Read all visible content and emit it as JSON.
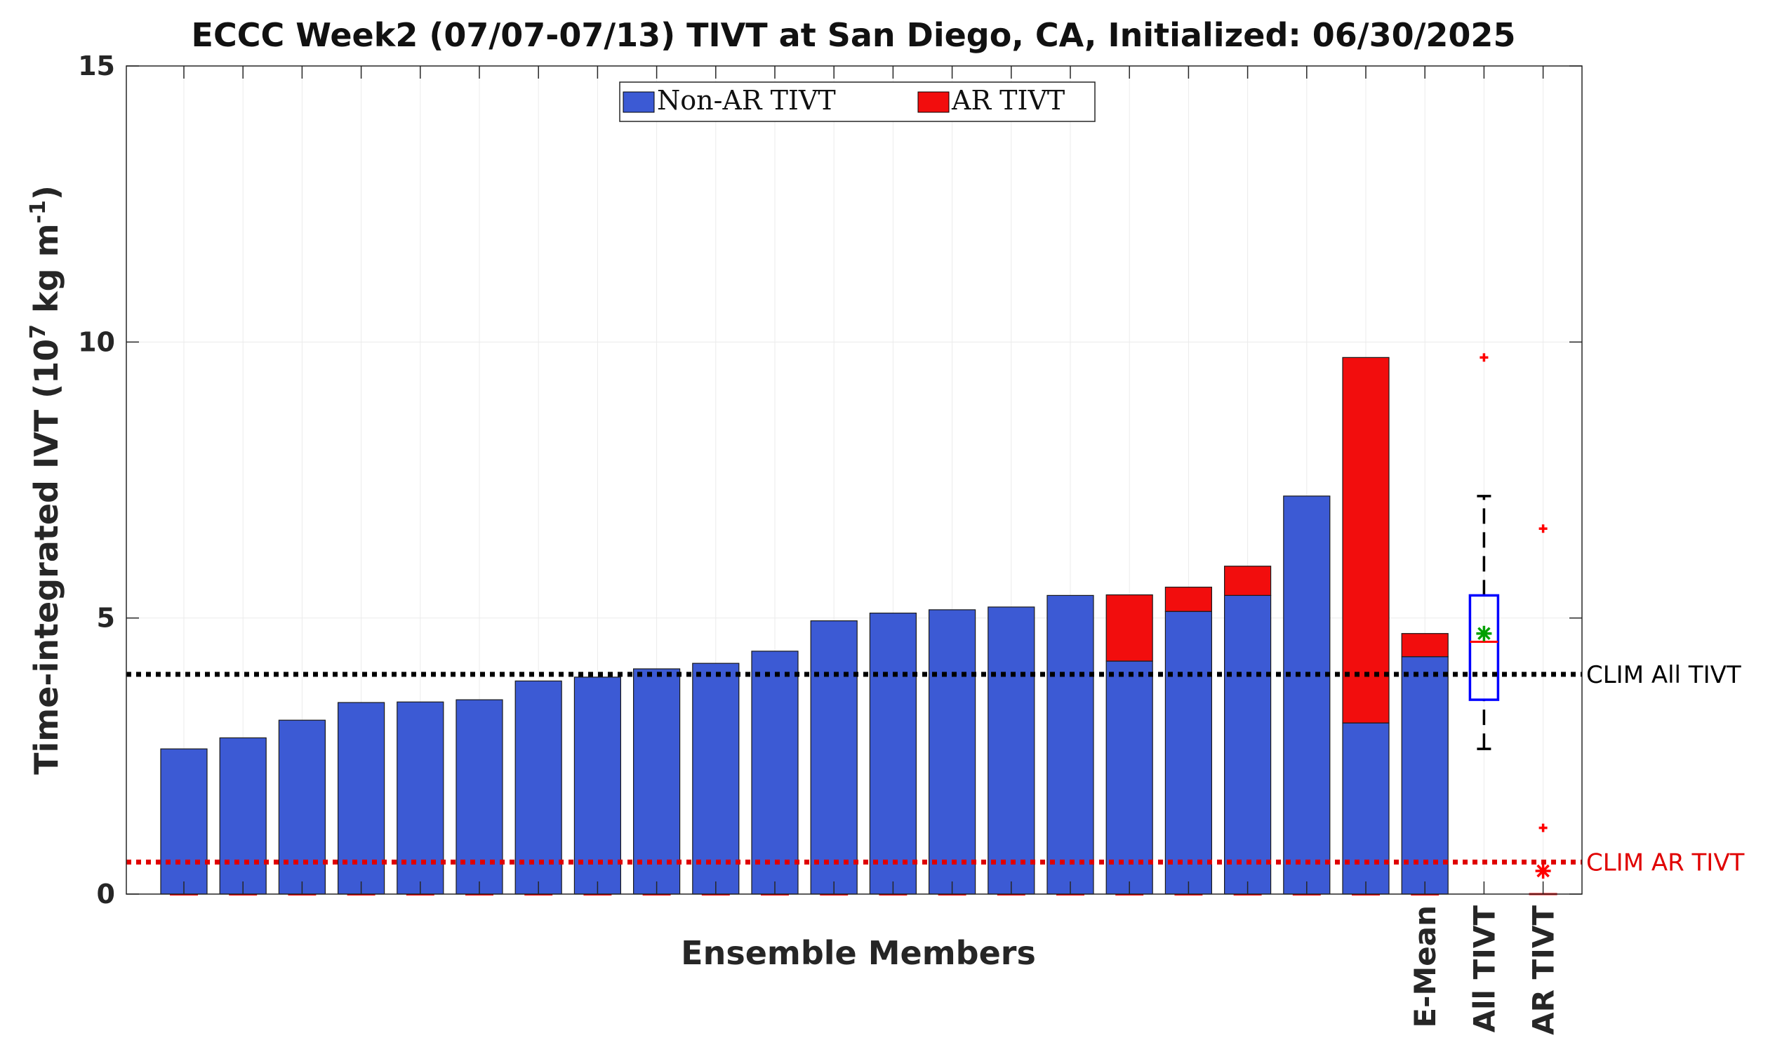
{
  "chart_data": {
    "type": "bar",
    "title": "ECCC Week2 (07/07-07/13) TIVT at San Diego, CA, Initialized: 06/30/2025",
    "xlabel": "Ensemble Members",
    "ylabel": "Time-integrated IVT (10",
    "ylabel_sup_exp": "7",
    "ylabel_mid": " kg m",
    "ylabel_sup_neg": "-1",
    "ylabel_end": ")",
    "ylim": [
      0,
      15
    ],
    "yticks": [
      0,
      5,
      10,
      15
    ],
    "grid": true,
    "legend_position": "top-center",
    "legend": [
      "Non-AR TIVT",
      "AR TIVT"
    ],
    "colors": {
      "non_ar": "#3c5ad4",
      "ar": "#f20d0d",
      "box": "#0000ff",
      "median": "#ff0000",
      "mean": "#00a000",
      "outlier": "#ff0000",
      "whisker": "#000000",
      "clim_all": "#000000",
      "clim_ar": "#e00000"
    },
    "series": [
      {
        "name": "Non-AR TIVT",
        "values": [
          2.63,
          2.83,
          3.15,
          3.47,
          3.48,
          3.52,
          3.86,
          3.93,
          4.08,
          4.18,
          4.4,
          4.95,
          5.09,
          5.15,
          5.2,
          5.41,
          4.22,
          5.12,
          5.41,
          7.21,
          3.1,
          4.3
        ]
      },
      {
        "name": "AR TIVT",
        "values": [
          0,
          0,
          0,
          0,
          0,
          0,
          0,
          0,
          0,
          0,
          0,
          0,
          0,
          0,
          0,
          0,
          1.2,
          0.44,
          0.53,
          0,
          6.62,
          0.42
        ]
      }
    ],
    "category_labels": [
      "E-Mean",
      "All TIVT",
      "AR TIVT"
    ],
    "boxplot_all": {
      "min": 2.63,
      "q1": 3.52,
      "median": 4.57,
      "q3": 5.41,
      "max": 7.21,
      "mean": 4.72,
      "outliers": [
        9.72
      ]
    },
    "boxplot_ar": {
      "min": 0,
      "q1": 0,
      "median": 0,
      "q3": 0,
      "max": 0,
      "mean": 0.42,
      "outliers": [
        6.62,
        1.2
      ]
    },
    "references": [
      {
        "label": "CLIM All TIVT",
        "value": 3.98
      },
      {
        "label": "CLIM AR TIVT",
        "value": 0.58
      }
    ]
  }
}
